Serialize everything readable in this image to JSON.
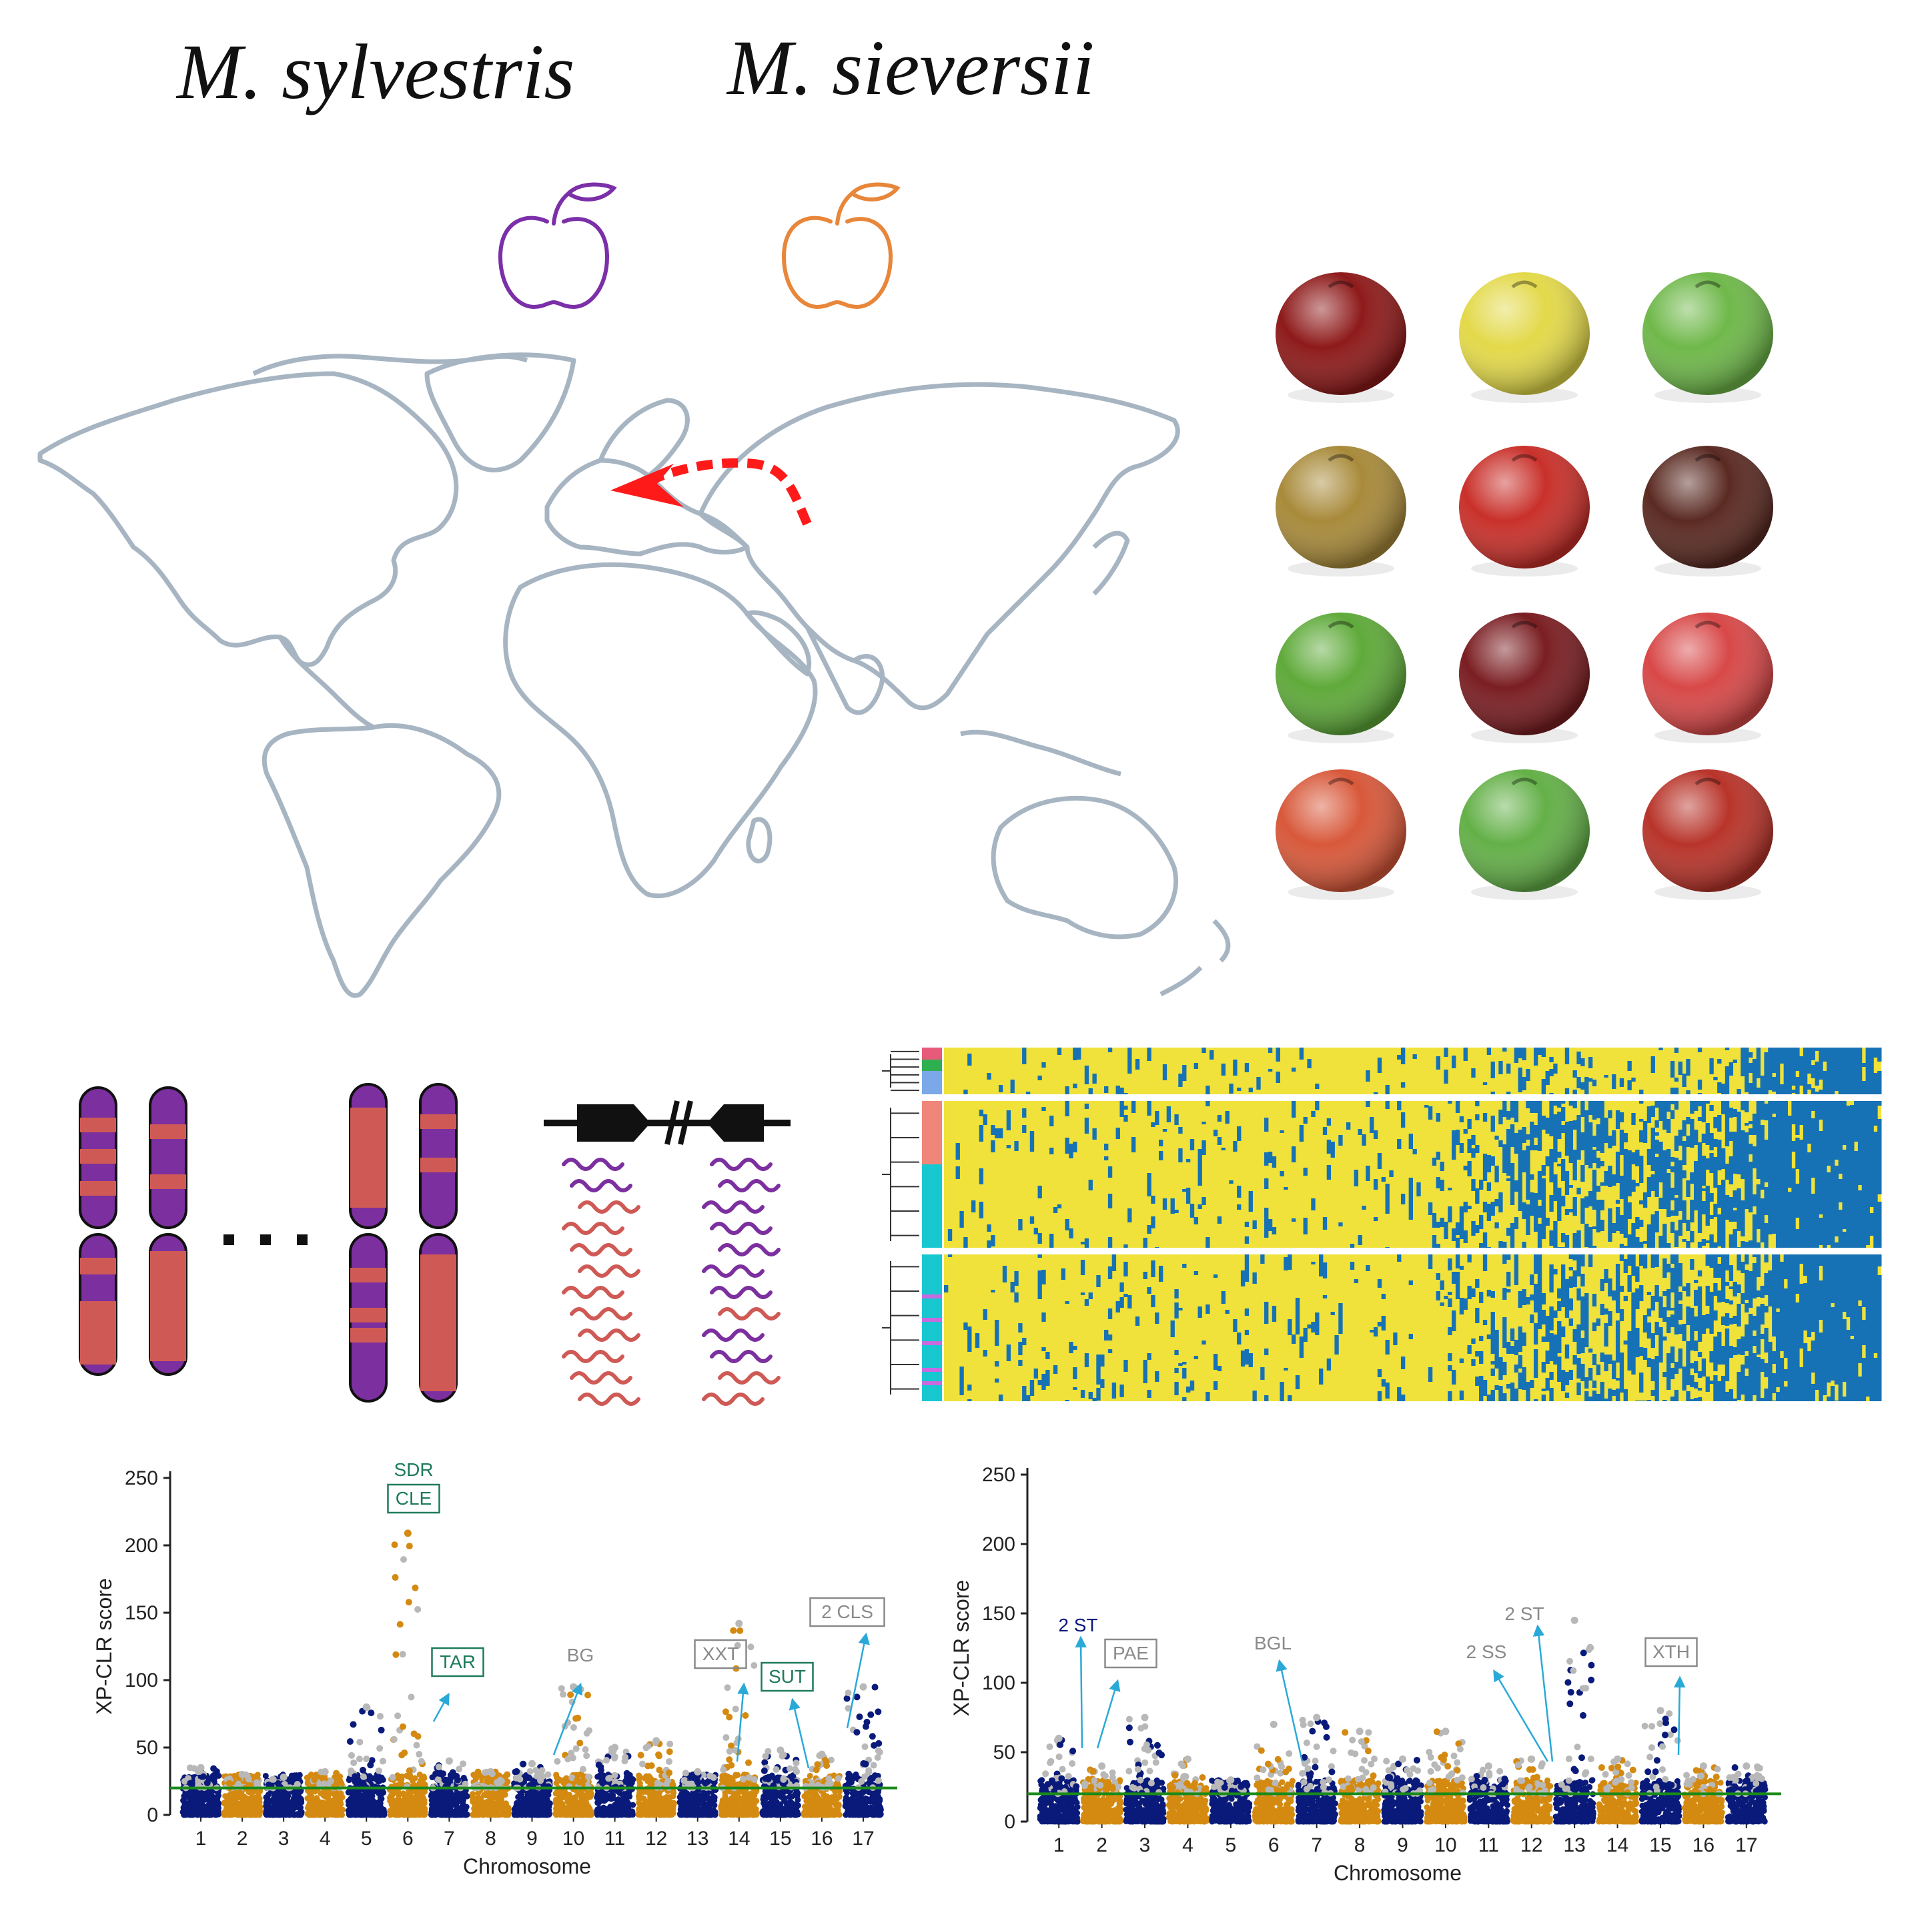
{
  "species": {
    "left": "M. sylvestris",
    "right": "M. sieversii"
  },
  "colors": {
    "sylvestris": "#7b2fa8",
    "sieversii": "#e8863a",
    "map_outline": "#a7b5c2",
    "migration_arrow": "#ff1a1a",
    "chrom_purple": "#7c2f9e",
    "chrom_red": "#cf5a55",
    "heat_yellow": "#f0e23a",
    "heat_blue": "#1672b5",
    "manhattan_navy": "#0a1a7a",
    "manhattan_gold": "#d48a10",
    "manhattan_gray": "#b8b8b8",
    "threshold": "#1a8a1a",
    "label_green": "#1e7a5a",
    "label_gray": "#8a8a8a",
    "arrow_cyan": "#29a9d8"
  },
  "icons": [
    "apple-outline-icon",
    "apple-outline-icon"
  ],
  "apple_photos": [
    {
      "color": "#8e1a1a"
    },
    {
      "color": "#e3d94a"
    },
    {
      "color": "#6fb84a"
    },
    {
      "color": "#a88a3a"
    },
    {
      "color": "#c9302a"
    },
    {
      "color": "#5a2a22"
    },
    {
      "color": "#5faa3a"
    },
    {
      "color": "#7a1e22"
    },
    {
      "color": "#d84848"
    },
    {
      "color": "#d8583a"
    },
    {
      "color": "#64b048"
    },
    {
      "color": "#b8342a"
    }
  ],
  "chart_data": [
    {
      "type": "scatter",
      "ylabel": "XP-CLR score",
      "xlabel": "Chromosome",
      "ylim": [
        0,
        250
      ],
      "yticks": [
        "0",
        "50",
        "100",
        "150",
        "200",
        "250"
      ],
      "categories": [
        "1",
        "2",
        "3",
        "4",
        "5",
        "6",
        "7",
        "8",
        "9",
        "10",
        "11",
        "12",
        "13",
        "14",
        "15",
        "16",
        "17"
      ],
      "threshold": 20,
      "peaks": [
        35,
        30,
        28,
        32,
        80,
        209,
        40,
        32,
        38,
        95,
        50,
        55,
        32,
        142,
        48,
        45,
        95
      ],
      "annotations": [
        {
          "text": "SDR",
          "boxed": false,
          "style": "green",
          "chromosome": "6"
        },
        {
          "text": "CLE",
          "boxed": true,
          "style": "green",
          "chromosome": "6"
        },
        {
          "text": "TAR",
          "boxed": true,
          "style": "green",
          "chromosome": "6"
        },
        {
          "text": "BG",
          "boxed": false,
          "style": "gray",
          "chromosome": "10"
        },
        {
          "text": "XXT",
          "boxed": true,
          "style": "gray",
          "chromosome": "14"
        },
        {
          "text": "SUT",
          "boxed": true,
          "style": "green",
          "chromosome": "15"
        },
        {
          "text": "2 CLS",
          "boxed": true,
          "style": "gray",
          "chromosome": "17"
        }
      ]
    },
    {
      "type": "scatter",
      "ylabel": "XP-CLR score",
      "xlabel": "Chromosome",
      "ylim": [
        0,
        250
      ],
      "yticks": [
        "0",
        "50",
        "100",
        "150",
        "200",
        "250"
      ],
      "categories": [
        "1",
        "2",
        "3",
        "4",
        "5",
        "6",
        "7",
        "8",
        "9",
        "10",
        "11",
        "12",
        "13",
        "14",
        "15",
        "16",
        "17"
      ],
      "threshold": 20,
      "peaks": [
        60,
        40,
        75,
        45,
        30,
        70,
        75,
        65,
        45,
        65,
        40,
        45,
        145,
        45,
        80,
        40,
        40
      ],
      "annotations": [
        {
          "text": "2 ST",
          "boxed": false,
          "style": "navy",
          "chromosome": "1"
        },
        {
          "text": "PAE",
          "boxed": true,
          "style": "gray",
          "chromosome": "2"
        },
        {
          "text": "BGL",
          "boxed": false,
          "style": "gray",
          "chromosome": "6"
        },
        {
          "text": "2 ST",
          "boxed": false,
          "style": "gray",
          "chromosome": "13"
        },
        {
          "text": "2 SS",
          "boxed": false,
          "style": "gray",
          "chromosome": "13"
        },
        {
          "text": "XTH",
          "boxed": true,
          "style": "gray",
          "chromosome": "16"
        }
      ]
    }
  ]
}
